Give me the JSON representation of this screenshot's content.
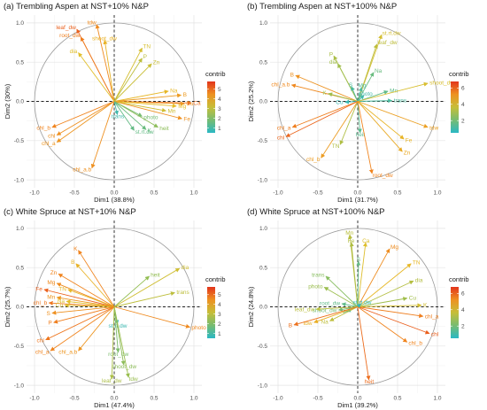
{
  "figure": {
    "legend_title": "contrib"
  },
  "chart_data": [
    {
      "type": "pca-correlation-circle",
      "title": "(a) Trembling Aspen at NST+10% N&P",
      "xlabel": "Dim1 (38.8%)",
      "ylabel": "Dim2 (30%)",
      "xlim": [
        -1.0,
        1.0
      ],
      "ylim": [
        -1.0,
        1.0
      ],
      "xticks": [
        "-1.0",
        "-0.5",
        "0.0",
        "0.5",
        "1.0"
      ],
      "yticks": [
        "1.0",
        "0.5",
        "0.0",
        "-0.5",
        "-1.0"
      ],
      "legend": {
        "title": "contrib",
        "ticks": [
          5,
          4,
          3,
          2,
          1
        ],
        "range": [
          0.5,
          5.8
        ]
      },
      "variables": [
        {
          "name": "tdw",
          "x": -0.22,
          "y": 0.98,
          "contrib": 4.6
        },
        {
          "name": "leaf_dw",
          "x": -0.47,
          "y": 0.92,
          "contrib": 5.2
        },
        {
          "name": "root_dw",
          "x": -0.42,
          "y": 0.82,
          "contrib": 4.8
        },
        {
          "name": "shoot_dw",
          "x": -0.12,
          "y": 0.78,
          "contrib": 3.9
        },
        {
          "name": "dia",
          "x": -0.45,
          "y": 0.62,
          "contrib": 3.6
        },
        {
          "name": "TN",
          "x": 0.35,
          "y": 0.68,
          "contrib": 3.4
        },
        {
          "name": "P",
          "x": 0.35,
          "y": 0.55,
          "contrib": 3.0
        },
        {
          "name": "Zn",
          "x": 0.47,
          "y": 0.48,
          "contrib": 3.2
        },
        {
          "name": "Na",
          "x": 0.68,
          "y": 0.13,
          "contrib": 3.8
        },
        {
          "name": "B",
          "x": 0.84,
          "y": 0.08,
          "contrib": 4.3
        },
        {
          "name": "Ca",
          "x": 0.97,
          "y": -0.02,
          "contrib": 5.0
        },
        {
          "name": "Cu",
          "x": 0.88,
          "y": -0.03,
          "contrib": 4.4
        },
        {
          "name": "Mg",
          "x": 0.78,
          "y": -0.06,
          "contrib": 3.7
        },
        {
          "name": "Mn",
          "x": 0.65,
          "y": -0.12,
          "contrib": 3.3
        },
        {
          "name": "Fe",
          "x": 0.85,
          "y": -0.22,
          "contrib": 4.5
        },
        {
          "name": "photo",
          "x": 0.35,
          "y": -0.19,
          "contrib": 1.8
        },
        {
          "name": "heit",
          "x": 0.55,
          "y": -0.33,
          "contrib": 2.2
        },
        {
          "name": "K",
          "x": 0.4,
          "y": -0.36,
          "contrib": 1.6
        },
        {
          "name": "st.rt.dw",
          "x": 0.25,
          "y": -0.37,
          "contrib": 1.5
        },
        {
          "name": "trans",
          "x": 0.04,
          "y": -0.17,
          "contrib": 0.9
        },
        {
          "name": "chl_b",
          "x": -0.78,
          "y": -0.33,
          "contrib": 4.7
        },
        {
          "name": "chl",
          "x": -0.72,
          "y": -0.43,
          "contrib": 4.5
        },
        {
          "name": "chl_a",
          "x": -0.72,
          "y": -0.52,
          "contrib": 4.4
        },
        {
          "name": "chl_a.b",
          "x": -0.28,
          "y": -0.85,
          "contrib": 4.5
        }
      ]
    },
    {
      "type": "pca-correlation-circle",
      "title": "(b) Trembling Aspen at NST+100% N&P",
      "xlabel": "Dim1 (31.7%)",
      "ylabel": "Dim2 (25.2%)",
      "xlim": [
        -1.0,
        1.0
      ],
      "ylim": [
        -1.0,
        1.0
      ],
      "xticks": [
        "-1.0",
        "-0.5",
        "0.0",
        "0.5",
        "1.0"
      ],
      "yticks": [
        "1.0",
        "0.5",
        "0.0",
        "-0.5",
        "-1.0"
      ],
      "legend": {
        "title": "contrib",
        "ticks": [
          6,
          4,
          2
        ],
        "range": [
          0.5,
          6.8
        ]
      },
      "variables": [
        {
          "name": "st.rt.dw",
          "x": 0.3,
          "y": 0.85,
          "contrib": 3.9
        },
        {
          "name": "leaf_dw",
          "x": 0.24,
          "y": 0.73,
          "contrib": 3.5
        },
        {
          "name": "P",
          "x": -0.3,
          "y": 0.58,
          "contrib": 3.1
        },
        {
          "name": "dia",
          "x": -0.25,
          "y": 0.48,
          "contrib": 2.9
        },
        {
          "name": "Na",
          "x": 0.2,
          "y": 0.37,
          "contrib": 1.8
        },
        {
          "name": "B",
          "x": -0.78,
          "y": 0.33,
          "contrib": 5.2
        },
        {
          "name": "chl_a.b",
          "x": -0.83,
          "y": 0.21,
          "contrib": 5.4
        },
        {
          "name": "K",
          "x": -0.37,
          "y": 0.1,
          "contrib": 2.9
        },
        {
          "name": "S",
          "x": -0.08,
          "y": 0.19,
          "contrib": 1.2
        },
        {
          "name": "Mg",
          "x": 0.05,
          "y": 0.18,
          "contrib": 1.3
        },
        {
          "name": "photo",
          "x": 0.08,
          "y": 0.08,
          "contrib": 1.0
        },
        {
          "name": "Mn",
          "x": 0.38,
          "y": 0.13,
          "contrib": 1.6
        },
        {
          "name": "Cu",
          "x": -0.16,
          "y": -0.01,
          "contrib": 0.8
        },
        {
          "name": "trans",
          "x": 0.43,
          "y": 0.01,
          "contrib": 1.2
        },
        {
          "name": "shoot_dw",
          "x": 0.88,
          "y": 0.23,
          "contrib": 4.0
        },
        {
          "name": "tdw",
          "x": 0.88,
          "y": -0.33,
          "contrib": 4.9
        },
        {
          "name": "Fe",
          "x": 0.58,
          "y": -0.48,
          "contrib": 4.5
        },
        {
          "name": "Zn",
          "x": 0.56,
          "y": -0.64,
          "contrib": 4.7
        },
        {
          "name": "chl_a",
          "x": -0.82,
          "y": -0.33,
          "contrib": 5.6
        },
        {
          "name": "chl",
          "x": -0.9,
          "y": -0.45,
          "contrib": 6.0
        },
        {
          "name": "heit",
          "x": 0.03,
          "y": -0.4,
          "contrib": 1.5
        },
        {
          "name": "TN",
          "x": -0.22,
          "y": -0.55,
          "contrib": 3.2
        },
        {
          "name": "chl_b",
          "x": -0.46,
          "y": -0.72,
          "contrib": 5.0
        },
        {
          "name": "root_dw",
          "x": 0.18,
          "y": -0.92,
          "contrib": 5.5
        }
      ]
    },
    {
      "type": "pca-correlation-circle",
      "title": "(c) White Spruce at NST+10% N&P",
      "xlabel": "Dim1 (47.4%)",
      "ylabel": "Dim2 (25.7%)",
      "xlim": [
        -1.0,
        1.0
      ],
      "ylim": [
        -1.0,
        1.0
      ],
      "xticks": [
        "-1.0",
        "-0.5",
        "0.0",
        "0.5",
        "1.0"
      ],
      "yticks": [
        "1.0",
        "0.5",
        "0.0",
        "-0.5",
        "-1.0"
      ],
      "legend": {
        "title": "contrib",
        "ticks": [
          5,
          4,
          3,
          2,
          1
        ],
        "range": [
          0.5,
          5.8
        ]
      },
      "variables": [
        {
          "name": "K",
          "x": -0.45,
          "y": 0.72,
          "contrib": 4.7
        },
        {
          "name": "B",
          "x": -0.48,
          "y": 0.55,
          "contrib": 3.9
        },
        {
          "name": "Zn",
          "x": -0.7,
          "y": 0.42,
          "contrib": 4.7
        },
        {
          "name": "Mg",
          "x": -0.72,
          "y": 0.3,
          "contrib": 4.6
        },
        {
          "name": "TN",
          "x": -0.58,
          "y": 0.22,
          "contrib": 3.8
        },
        {
          "name": "Fe",
          "x": -0.88,
          "y": 0.22,
          "contrib": 5.2
        },
        {
          "name": "Mn",
          "x": -0.72,
          "y": 0.12,
          "contrib": 4.4
        },
        {
          "name": "Na",
          "x": -0.6,
          "y": 0.07,
          "contrib": 3.6
        },
        {
          "name": "chl_b",
          "x": -0.82,
          "y": 0.05,
          "contrib": 4.9
        },
        {
          "name": "Cu",
          "x": -0.62,
          "y": 0.02,
          "contrib": 3.5
        },
        {
          "name": "S",
          "x": -0.78,
          "y": -0.08,
          "contrib": 4.5
        },
        {
          "name": "P",
          "x": -0.76,
          "y": -0.2,
          "contrib": 4.8
        },
        {
          "name": "chl",
          "x": -0.86,
          "y": -0.42,
          "contrib": 4.9
        },
        {
          "name": "chl_a",
          "x": -0.8,
          "y": -0.56,
          "contrib": 4.7
        },
        {
          "name": "chl_a.b",
          "x": -0.45,
          "y": -0.56,
          "contrib": 4.4
        },
        {
          "name": "dia",
          "x": 0.82,
          "y": 0.49,
          "contrib": 3.3
        },
        {
          "name": "heit",
          "x": 0.44,
          "y": 0.39,
          "contrib": 2.3
        },
        {
          "name": "trans",
          "x": 0.76,
          "y": 0.18,
          "contrib": 3.0
        },
        {
          "name": "photo",
          "x": 0.95,
          "y": -0.26,
          "contrib": 4.6
        },
        {
          "name": "st.rt.dw",
          "x": 0.04,
          "y": -0.22,
          "contrib": 0.8
        },
        {
          "name": "root_dw",
          "x": 0.05,
          "y": -0.58,
          "contrib": 1.9
        },
        {
          "name": "shoot_dw",
          "x": 0.12,
          "y": -0.74,
          "contrib": 2.2
        },
        {
          "name": "tdw",
          "x": 0.18,
          "y": -0.9,
          "contrib": 2.4
        },
        {
          "name": "leaf_dw",
          "x": -0.03,
          "y": -0.92,
          "contrib": 2.7
        }
      ]
    },
    {
      "type": "pca-correlation-circle",
      "title": "(d) White Spruce at NST+100% N&P",
      "xlabel": "Dim1 (39.2%)",
      "ylabel": "Dim2 (24.8%)",
      "xlim": [
        -1.0,
        1.0
      ],
      "ylim": [
        -1.0,
        1.0
      ],
      "xticks": [
        "-1.0",
        "-0.5",
        "0.0",
        "0.5",
        "1.0"
      ],
      "yticks": [
        "1.0",
        "0.5",
        "0.0",
        "-0.5",
        "-1.0"
      ],
      "legend": {
        "title": "contrib",
        "ticks": [
          6,
          4,
          2
        ],
        "range": [
          0.5,
          6.8
        ]
      },
      "variables": [
        {
          "name": "Mn",
          "x": -0.1,
          "y": 0.92,
          "contrib": 3.4
        },
        {
          "name": "Fe",
          "x": -0.08,
          "y": 0.82,
          "contrib": 3.2
        },
        {
          "name": "Ca",
          "x": 0.1,
          "y": 0.82,
          "contrib": 4.1
        },
        {
          "name": "S",
          "x": 0.01,
          "y": 0.58,
          "contrib": 1.7
        },
        {
          "name": "Mg",
          "x": 0.4,
          "y": 0.74,
          "contrib": 5.3
        },
        {
          "name": "TN",
          "x": 0.67,
          "y": 0.55,
          "contrib": 4.4
        },
        {
          "name": "dia",
          "x": 0.7,
          "y": 0.33,
          "contrib": 3.3
        },
        {
          "name": "Cu",
          "x": 0.62,
          "y": 0.11,
          "contrib": 2.9
        },
        {
          "name": "K",
          "x": 0.8,
          "y": 0.02,
          "contrib": 3.9
        },
        {
          "name": "chl_a",
          "x": 0.82,
          "y": -0.12,
          "contrib": 5.6
        },
        {
          "name": "chl",
          "x": 0.9,
          "y": -0.34,
          "contrib": 6.1
        },
        {
          "name": "chl_b",
          "x": 0.62,
          "y": -0.45,
          "contrib": 5.5
        },
        {
          "name": "trans",
          "x": -0.4,
          "y": 0.39,
          "contrib": 2.4
        },
        {
          "name": "photo",
          "x": -0.42,
          "y": 0.25,
          "contrib": 2.8
        },
        {
          "name": "st.rt.dw",
          "x": 0.04,
          "y": 0.04,
          "contrib": 0.7
        },
        {
          "name": "root_dw",
          "x": -0.2,
          "y": 0.04,
          "contrib": 1.6
        },
        {
          "name": "shoot_dw",
          "x": -0.24,
          "y": -0.04,
          "contrib": 2.0
        },
        {
          "name": "leaf_dw",
          "x": -0.52,
          "y": -0.03,
          "contrib": 3.4
        },
        {
          "name": "P",
          "x": -0.14,
          "y": -0.06,
          "contrib": 1.2
        },
        {
          "name": "Na",
          "x": -0.35,
          "y": -0.18,
          "contrib": 3.5
        },
        {
          "name": "tdw",
          "x": -0.55,
          "y": -0.2,
          "contrib": 4.6
        },
        {
          "name": "B",
          "x": -0.8,
          "y": -0.23,
          "contrib": 5.8
        },
        {
          "name": "heit",
          "x": 0.14,
          "y": -0.93,
          "contrib": 5.9
        }
      ]
    }
  ]
}
